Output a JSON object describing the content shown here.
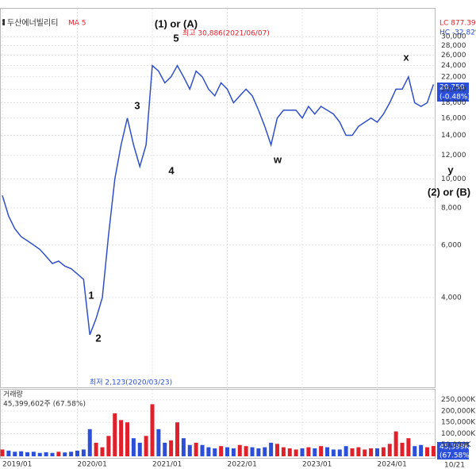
{
  "header": {
    "name": "두산에너빌리티",
    "ma": "MA 5",
    "lc": "LC 877.39%",
    "hc": "HC -32.82%",
    "volume_title": "거래량",
    "volume_info": "45,399,602주 (67.58%)",
    "price_now": "20,750",
    "price_change": "(-0.48%)",
    "volume_now": "45,399K",
    "volume_ratio": "(67.58%)",
    "last_date": "10/21"
  },
  "chart_data": [
    {
      "type": "line",
      "log_scale": true,
      "grid": true,
      "x": [
        "2019/01",
        "2019/02",
        "2019/03",
        "2019/04",
        "2019/05",
        "2019/06",
        "2019/07",
        "2019/08",
        "2019/09",
        "2019/10",
        "2019/11",
        "2019/12",
        "2020/01",
        "2020/02",
        "2020/03",
        "2020/04",
        "2020/05",
        "2020/06",
        "2020/07",
        "2020/08",
        "2020/09",
        "2020/10",
        "2020/11",
        "2020/12",
        "2021/01",
        "2021/02",
        "2021/03",
        "2021/04",
        "2021/05",
        "2021/06",
        "2021/07",
        "2021/08",
        "2021/09",
        "2021/10",
        "2021/11",
        "2021/12",
        "2022/01",
        "2022/02",
        "2022/03",
        "2022/04",
        "2022/05",
        "2022/06",
        "2022/07",
        "2022/08",
        "2022/09",
        "2022/10",
        "2022/11",
        "2022/12",
        "2023/01",
        "2023/02",
        "2023/03",
        "2023/04",
        "2023/05",
        "2023/06",
        "2023/07",
        "2023/08",
        "2023/09",
        "2023/10",
        "2023/11",
        "2023/12",
        "2024/01",
        "2024/02",
        "2024/03",
        "2024/04",
        "2024/05",
        "2024/06",
        "2024/07",
        "2024/08",
        "2024/09",
        "2024/10"
      ],
      "series": [
        {
          "color": "#2f4fc8",
          "values": [
            8800,
            7500,
            6800,
            6400,
            6200,
            6000,
            5800,
            5500,
            5200,
            5300,
            5100,
            5000,
            4800,
            4600,
            3000,
            3400,
            4000,
            6500,
            10000,
            13000,
            16000,
            13000,
            11000,
            13000,
            24000,
            23000,
            21000,
            22000,
            24000,
            22000,
            20000,
            23000,
            22000,
            20000,
            19000,
            21000,
            20000,
            18000,
            19000,
            20000,
            19000,
            17000,
            15000,
            13000,
            16000,
            17000,
            17000,
            17000,
            16000,
            17500,
            16500,
            17500,
            17000,
            16500,
            15500,
            14000,
            14000,
            15000,
            15500,
            16000,
            15500,
            16500,
            18000,
            20000,
            20000,
            22000,
            18000,
            17500,
            18000,
            20750
          ]
        }
      ],
      "ylim": [
        2000,
        37000
      ],
      "yticks": [
        {
          "value": 4000,
          "label": "4,000"
        },
        {
          "value": 6000,
          "label": "6,000"
        },
        {
          "value": 8000,
          "label": "8,000"
        },
        {
          "value": 10000,
          "label": "10,000"
        },
        {
          "value": 12000,
          "label": "12,000"
        },
        {
          "value": 14000,
          "label": "14,000"
        },
        {
          "value": 16000,
          "label": "16,000"
        },
        {
          "value": 18000,
          "label": "18,000"
        },
        {
          "value": 20000,
          "label": "20,000"
        },
        {
          "value": 22000,
          "label": "22,000"
        },
        {
          "value": 24000,
          "label": "24,000"
        },
        {
          "value": 26000,
          "label": "26,000"
        },
        {
          "value": 28000,
          "label": "28,000"
        },
        {
          "value": 30000,
          "label": "30,000"
        }
      ],
      "xticks": [
        "2019/01",
        "2020/01",
        "2021/01",
        "2022/01",
        "2023/01",
        "2024/01"
      ],
      "annotations": [
        "(1) or (A)",
        "5",
        "3",
        "4",
        "1",
        "2",
        "w",
        "x",
        "y",
        "(2) or (B)",
        "최고 30,886(2021/06/07)",
        "최저 2,123(2020/03/23)"
      ]
    },
    {
      "type": "bar",
      "up_color": "#e0202a",
      "down_color": "#2b4fd8",
      "values": [
        30000,
        25000,
        20000,
        22000,
        18000,
        20000,
        15000,
        18000,
        15000,
        20000,
        17000,
        20000,
        25000,
        30000,
        120000,
        60000,
        40000,
        90000,
        190000,
        160000,
        150000,
        80000,
        60000,
        90000,
        230000,
        120000,
        60000,
        70000,
        150000,
        80000,
        50000,
        60000,
        50000,
        40000,
        35000,
        45000,
        40000,
        35000,
        50000,
        45000,
        40000,
        35000,
        40000,
        60000,
        55000,
        40000,
        35000,
        30000,
        35000,
        40000,
        35000,
        45000,
        40000,
        30000,
        30000,
        45000,
        35000,
        40000,
        30000,
        35000,
        35000,
        40000,
        55000,
        110000,
        60000,
        80000,
        45000,
        50000,
        40000,
        45399
      ],
      "ylim": [
        0,
        270000
      ],
      "yticks": [
        {
          "value": 50000,
          "label": "50,000K"
        },
        {
          "value": 100000,
          "label": "100,000K"
        },
        {
          "value": 150000,
          "label": "150,000K"
        },
        {
          "value": 200000,
          "label": "200,000K"
        },
        {
          "value": 250000,
          "label": "250,000K"
        }
      ]
    }
  ]
}
